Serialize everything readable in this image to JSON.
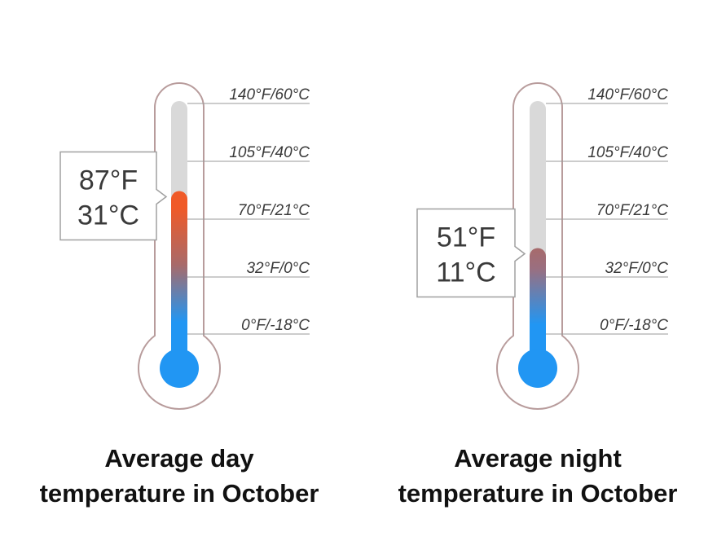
{
  "chart_data": [
    {
      "type": "thermometer",
      "title": "Average day temperature in October",
      "value_f": 87,
      "value_label_f": "87°F",
      "value_label_c": "31°C",
      "scale_f": [
        0,
        140
      ],
      "ticks": [
        {
          "f": 140,
          "label": "140°F/60°C"
        },
        {
          "f": 105,
          "label": "105°F/40°C"
        },
        {
          "f": 70,
          "label": "70°F/21°C"
        },
        {
          "f": 32,
          "label": "32°F/0°C"
        },
        {
          "f": 0,
          "label": "0°F/-18°C"
        }
      ]
    },
    {
      "type": "thermometer",
      "title": "Average night temperature in October",
      "value_f": 51,
      "value_label_f": "51°F",
      "value_label_c": "11°C",
      "scale_f": [
        0,
        140
      ],
      "ticks": [
        {
          "f": 140,
          "label": "140°F/60°C"
        },
        {
          "f": 105,
          "label": "105°F/40°C"
        },
        {
          "f": 70,
          "label": "70°F/21°C"
        },
        {
          "f": 32,
          "label": "32°F/0°C"
        },
        {
          "f": 0,
          "label": "0°F/-18°C"
        }
      ]
    }
  ],
  "colors": {
    "outline": "#b89c9c",
    "tube_background": "#d9d9d9",
    "gridline": "#9a9a9a",
    "cold": "#2196f3",
    "mid": "#a86a6a",
    "hot": "#f05a28"
  },
  "captions": {
    "day_line1": "Average day",
    "day_line2": "temperature in October",
    "night_line1": "Average night",
    "night_line2": "temperature in October"
  }
}
